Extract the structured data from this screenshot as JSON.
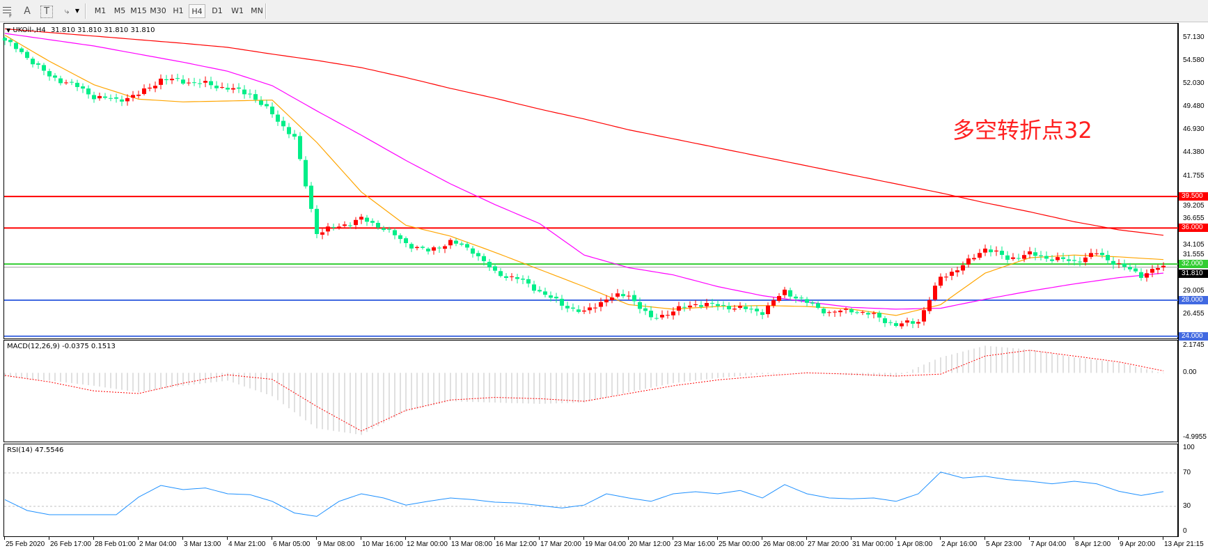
{
  "toolbar": {
    "icons": [
      "grid-f-icon",
      "text-a-icon",
      "text-label-icon",
      "arrows-icon",
      "dropdown-icon"
    ],
    "timeframes": [
      "M1",
      "M5",
      "M15",
      "M30",
      "H1",
      "H4",
      "D1",
      "W1",
      "MN"
    ],
    "active_timeframe": "H4"
  },
  "chart_header": {
    "symbol": "UKOil-,H4",
    "ohlc": "31.810 31.810 31.810 31.810"
  },
  "annotation": {
    "text": "多空转折点32",
    "color": "#ff2020"
  },
  "macd_title": "MACD(12,26,9) -0.0375 0.1513",
  "rsi_title": "RSI(14) 47.5546",
  "colors": {
    "bull_candle": "#ff0000",
    "bear_candle": "#00ee88",
    "ma_fast": "#ffa500",
    "ma_mid": "#ff00ff",
    "ma_slow": "#ff0000",
    "macd_hist": "#c0c0c0",
    "macd_signal": "#ff0000",
    "rsi_line": "#1e90ff"
  },
  "chart_data": [
    {
      "type": "candlestick",
      "title": "UKOil-,H4",
      "price_ticks": [
        "57.130",
        "54.580",
        "52.030",
        "49.480",
        "46.930",
        "44.380",
        "41.755",
        "39.205",
        "36.655",
        "34.105",
        "31.555",
        "29.005",
        "26.455"
      ],
      "ylim": [
        24.0,
        57.8
      ],
      "current_price": "31.810",
      "x_tick_labels": [
        "25 Feb 2020",
        "26 Feb 17:00",
        "28 Feb 01:00",
        "2 Mar 04:00",
        "3 Mar 13:00",
        "4 Mar 21:00",
        "6 Mar 05:00",
        "9 Mar 08:00",
        "10 Mar 16:00",
        "12 Mar 00:00",
        "13 Mar 08:00",
        "16 Mar 12:00",
        "17 Mar 20:00",
        "19 Mar 04:00",
        "20 Mar 12:00",
        "23 Mar 16:00",
        "25 Mar 00:00",
        "26 Mar 08:00",
        "27 Mar 20:00",
        "31 Mar 00:00",
        "1 Apr 08:00",
        "2 Apr 16:00",
        "5 Apr 23:00",
        "7 Apr 04:00",
        "8 Apr 12:00",
        "9 Apr 20:00",
        "13 Apr 21:15"
      ],
      "candles_per_tick": 8,
      "close_every_half_tick": [
        56.8,
        55.0,
        52.8,
        52.0,
        50.6,
        50.2,
        50.8,
        52.5,
        52.3,
        52.0,
        51.5,
        50.9,
        48.6,
        46.0,
        35.5,
        36.2,
        37.0,
        36.0,
        34.3,
        33.4,
        34.5,
        33.5,
        31.0,
        30.4,
        29.0,
        27.5,
        26.6,
        28.2,
        28.6,
        25.9,
        26.8,
        27.6,
        27.4,
        27.1,
        26.7,
        29.0,
        27.7,
        26.6,
        26.9,
        26.3,
        25.2,
        25.7,
        30.5,
        31.8,
        33.8,
        32.6,
        33.1,
        32.6,
        32.3,
        33.2,
        31.9,
        30.8,
        31.81
      ],
      "moving_averages_per_tick": {
        "fast": [
          57.4,
          54.5,
          51.9,
          50.3,
          50.0,
          50.1,
          50.2,
          45.5,
          40.0,
          36.3,
          35.1,
          33.3,
          31.4,
          29.5,
          27.5,
          27.0,
          27.3,
          27.4,
          27.3,
          27.0,
          26.3,
          27.5,
          31.0,
          32.7,
          33.0,
          32.8,
          32.5
        ],
        "mid": [
          57.6,
          56.9,
          56.2,
          55.3,
          54.4,
          53.4,
          51.8,
          49.0,
          46.3,
          43.5,
          40.9,
          38.6,
          36.5,
          33.0,
          31.6,
          30.8,
          29.5,
          28.5,
          27.8,
          27.2,
          27.0,
          27.1,
          28.1,
          29.0,
          29.8,
          30.5,
          31.0
        ],
        "slow": [
          58.1,
          57.7,
          57.3,
          56.9,
          56.5,
          56.05,
          55.3,
          54.6,
          53.8,
          52.7,
          51.5,
          50.4,
          49.2,
          48.1,
          46.9,
          45.9,
          44.9,
          43.9,
          42.9,
          41.9,
          40.9,
          39.9,
          38.8,
          37.8,
          36.7,
          35.8,
          35.2
        ]
      },
      "horizontal_lines": [
        {
          "value": 39.5,
          "label": "39.500",
          "color": "#ff0000"
        },
        {
          "value": 36.0,
          "label": "36.000",
          "color": "#ff0000"
        },
        {
          "value": 32.0,
          "label": "32.000",
          "color": "#32cd32"
        },
        {
          "value": 28.0,
          "label": "28.000",
          "color": "#4169e1"
        },
        {
          "value": 24.0,
          "label": "24.000",
          "color": "#4169e1"
        }
      ]
    },
    {
      "type": "bar+line",
      "title": "MACD(12,26,9) -0.0375 0.1513",
      "y_ticks": [
        "2.1745",
        "0.00",
        "-4.9955"
      ],
      "ylim": [
        -4.9955,
        2.1745
      ],
      "histogram_per_tick": [
        -0.3,
        -0.6,
        -1.0,
        -1.5,
        -1.0,
        -0.6,
        -1.8,
        -4.3,
        -4.8,
        -3.0,
        -2.2,
        -2.3,
        -2.4,
        -2.3,
        -1.5,
        -0.8,
        -0.4,
        -0.1,
        0.05,
        -0.2,
        -0.3,
        1.2,
        2.1,
        1.8,
        1.2,
        0.8,
        -0.0375
      ],
      "signal_per_tick": [
        -0.2,
        -0.7,
        -1.4,
        -1.6,
        -0.8,
        -0.15,
        -0.5,
        -2.6,
        -4.5,
        -2.9,
        -2.1,
        -1.9,
        -2.0,
        -2.2,
        -1.6,
        -1.0,
        -0.55,
        -0.25,
        0.0,
        -0.1,
        -0.25,
        -0.1,
        1.3,
        1.75,
        1.3,
        0.85,
        0.1513
      ]
    },
    {
      "type": "line",
      "title": "RSI(14) 47.5546",
      "y_ticks": [
        "100",
        "70",
        "30",
        "0"
      ],
      "levels": [
        70,
        30
      ],
      "ylim": [
        0,
        100
      ],
      "rsi_every_half_tick": [
        38,
        25,
        20,
        20,
        20,
        20,
        41,
        55,
        50,
        52,
        45,
        44,
        36,
        22,
        18,
        36,
        45,
        40,
        31.5,
        36,
        40,
        38,
        35,
        34,
        31,
        28,
        31.5,
        45,
        40,
        36,
        45,
        47.5,
        45,
        49,
        40,
        56,
        45,
        40,
        39,
        40,
        36,
        45,
        71,
        64,
        66,
        62,
        60,
        57,
        60,
        57,
        48,
        43,
        47.5546
      ]
    }
  ]
}
